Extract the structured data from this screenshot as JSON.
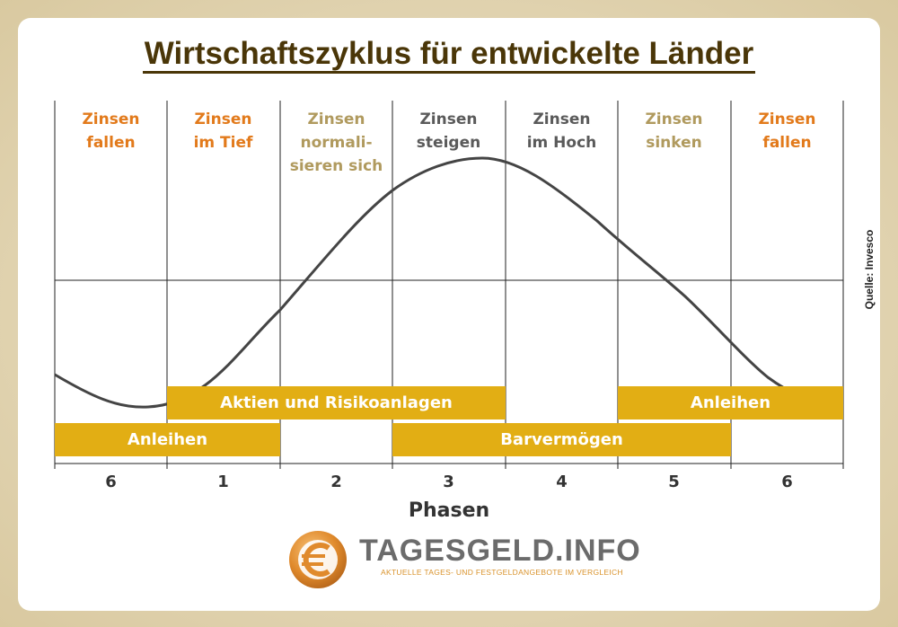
{
  "title": "Wirtschaftszyklus für entwickelte Länder",
  "source": "Quelle: Invesco",
  "phase_headers": [
    {
      "lines": [
        "Zinsen",
        "fallen"
      ],
      "color": "#e27a1b"
    },
    {
      "lines": [
        "Zinsen",
        "im Tief"
      ],
      "color": "#e27a1b"
    },
    {
      "lines": [
        "Zinsen",
        "normali-",
        "sieren sich"
      ],
      "color": "#b09a5e"
    },
    {
      "lines": [
        "Zinsen",
        "steigen"
      ],
      "color": "#5a5a5a"
    },
    {
      "lines": [
        "Zinsen",
        "im Hoch"
      ],
      "color": "#5a5a5a"
    },
    {
      "lines": [
        "Zinsen",
        "sinken"
      ],
      "color": "#b09a5e"
    },
    {
      "lines": [
        "Zinsen",
        "fallen"
      ],
      "color": "#e27a1b"
    }
  ],
  "bars": {
    "aktien": "Aktien und Risikoanlagen",
    "anleihen_right": "Anleihen",
    "anleihen_left": "Anleihen",
    "barvermoegen": "Barvermögen"
  },
  "phases": [
    "6",
    "1",
    "2",
    "3",
    "4",
    "5",
    "6"
  ],
  "axis_title": "Phasen",
  "logo": {
    "main": "TAGESGELD.INFO",
    "sub": "AKTUELLE TAGES- UND FESTGELDANGEBOTE IM VERGLEICH"
  },
  "colors": {
    "bar": "#e2ae14",
    "curve": "#444444",
    "title": "#4a3608"
  }
}
